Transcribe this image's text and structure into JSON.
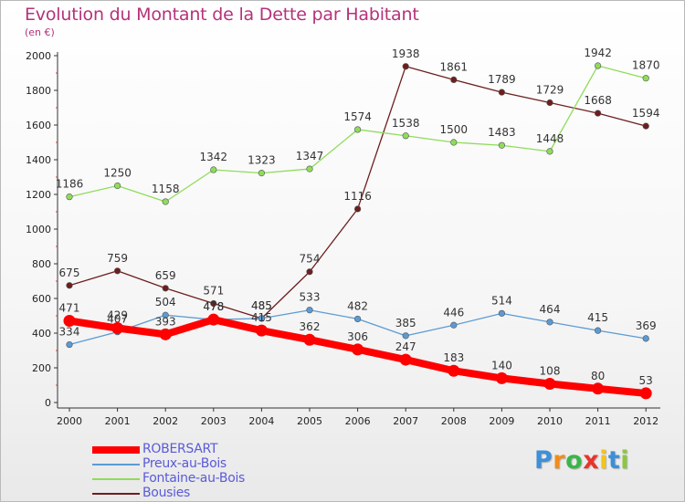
{
  "title": "Evolution du Montant de la Dette par Habitant",
  "subtitle": "(en €)",
  "brand": "Proxiti",
  "chart_data": {
    "type": "line",
    "x": [
      "2000",
      "2001",
      "2002",
      "2003",
      "2004",
      "2005",
      "2006",
      "2007",
      "2008",
      "2009",
      "2010",
      "2011",
      "2012"
    ],
    "ylim": [
      0,
      2000
    ],
    "yticks": [
      "0",
      "200",
      "400",
      "600",
      "800",
      "1000",
      "1200",
      "1400",
      "1600",
      "1800",
      "2000"
    ],
    "grid": false,
    "legend_position": "bottom-left",
    "series": [
      {
        "name": "ROBERSART",
        "color": "#ff0000",
        "values": [
          471,
          429,
          393,
          478,
          415,
          362,
          306,
          247,
          183,
          140,
          108,
          80,
          53
        ]
      },
      {
        "name": "Preux-au-Bois",
        "color": "#5b9bd5",
        "values": [
          334,
          407,
          504,
          478,
          485,
          533,
          482,
          385,
          446,
          514,
          464,
          415,
          369
        ]
      },
      {
        "name": "Fontaine-au-Bois",
        "color": "#8fdc5a",
        "values": [
          1186,
          1250,
          1158,
          1342,
          1323,
          1347,
          1574,
          1538,
          1500,
          1483,
          1448,
          1942,
          1870
        ]
      },
      {
        "name": "Bousies",
        "color": "#6e1e1e",
        "values": [
          675,
          759,
          659,
          571,
          485,
          754,
          1116,
          1938,
          1861,
          1789,
          1729,
          1668,
          1594
        ]
      }
    ]
  }
}
